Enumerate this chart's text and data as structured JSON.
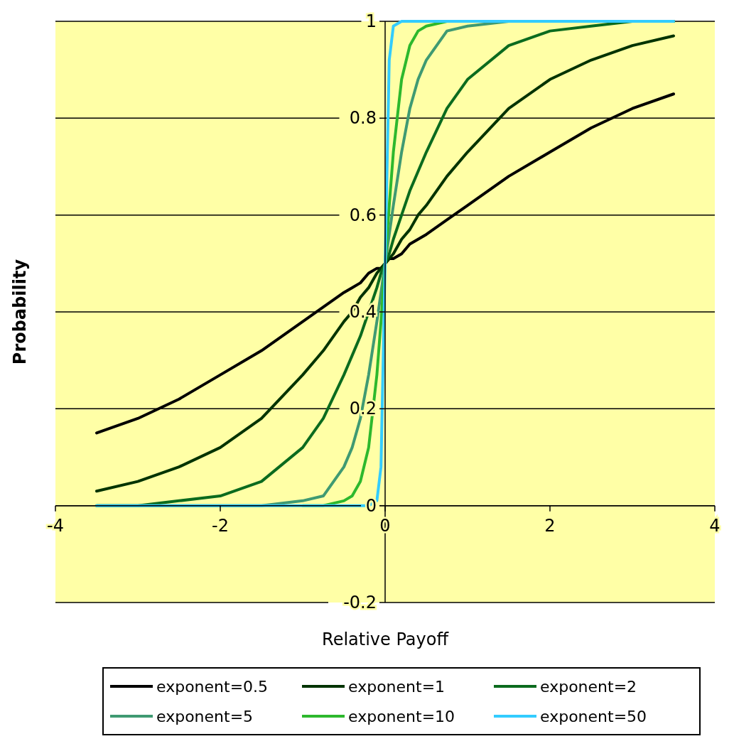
{
  "chart_data": {
    "type": "line",
    "xlabel": "Relative Payoff",
    "ylabel": "Probability",
    "x": [
      -3.5,
      -3,
      -2.5,
      -2,
      -1.5,
      -1,
      -0.75,
      -0.5,
      -0.4,
      -0.3,
      -0.2,
      -0.1,
      -0.05,
      0,
      0.05,
      0.1,
      0.2,
      0.3,
      0.4,
      0.5,
      0.75,
      1,
      1.5,
      2,
      2.5,
      3,
      3.5
    ],
    "series": [
      {
        "name": "exponent=0.5",
        "color": "#000000",
        "values": [
          0.15,
          0.18,
          0.22,
          0.27,
          0.32,
          0.38,
          0.41,
          0.44,
          0.45,
          0.46,
          0.48,
          0.49,
          0.49,
          0.5,
          0.51,
          0.51,
          0.52,
          0.54,
          0.55,
          0.56,
          0.59,
          0.62,
          0.68,
          0.73,
          0.78,
          0.82,
          0.85
        ]
      },
      {
        "name": "exponent=1",
        "color": "#003300",
        "values": [
          0.03,
          0.05,
          0.08,
          0.12,
          0.18,
          0.27,
          0.32,
          0.38,
          0.4,
          0.43,
          0.45,
          0.48,
          0.49,
          0.5,
          0.51,
          0.52,
          0.55,
          0.57,
          0.6,
          0.62,
          0.68,
          0.73,
          0.82,
          0.88,
          0.92,
          0.95,
          0.97
        ]
      },
      {
        "name": "exponent=2",
        "color": "#0b6b1e",
        "values": [
          0,
          0,
          0.01,
          0.02,
          0.05,
          0.12,
          0.18,
          0.27,
          0.31,
          0.35,
          0.4,
          0.45,
          0.48,
          0.5,
          0.52,
          0.55,
          0.6,
          0.65,
          0.69,
          0.73,
          0.82,
          0.88,
          0.95,
          0.98,
          0.99,
          1,
          1
        ]
      },
      {
        "name": "exponent=5",
        "color": "#3f9a72",
        "values": [
          0,
          0,
          0,
          0,
          0,
          0.01,
          0.02,
          0.08,
          0.12,
          0.18,
          0.27,
          0.38,
          0.44,
          0.5,
          0.56,
          0.62,
          0.73,
          0.82,
          0.88,
          0.92,
          0.98,
          0.99,
          1,
          1,
          1,
          1,
          1
        ]
      },
      {
        "name": "exponent=10",
        "color": "#2db82d",
        "values": [
          null,
          null,
          null,
          null,
          null,
          0,
          0,
          0.01,
          0.02,
          0.05,
          0.12,
          0.27,
          0.38,
          0.5,
          0.62,
          0.73,
          0.88,
          0.95,
          0.98,
          0.99,
          1,
          1,
          1,
          1,
          1,
          1,
          1
        ]
      },
      {
        "name": "exponent=50",
        "color": "#33ccff",
        "values": [
          0,
          0,
          0,
          0,
          0,
          0,
          0,
          0,
          0,
          0,
          0,
          0.01,
          0.08,
          0.5,
          0.92,
          0.99,
          1,
          1,
          1,
          1,
          1,
          1,
          1,
          1,
          1,
          1,
          1
        ]
      }
    ],
    "xlim": [
      -4,
      4
    ],
    "xticks": [
      -4,
      -2,
      0,
      2,
      4
    ],
    "ylim": [
      -0.2,
      1
    ],
    "yticks": [
      -0.2,
      0,
      0.2,
      0.4,
      0.6,
      0.8,
      1
    ],
    "grid": "y",
    "legend": "bottom",
    "marker": "none",
    "line_style": "solid"
  }
}
